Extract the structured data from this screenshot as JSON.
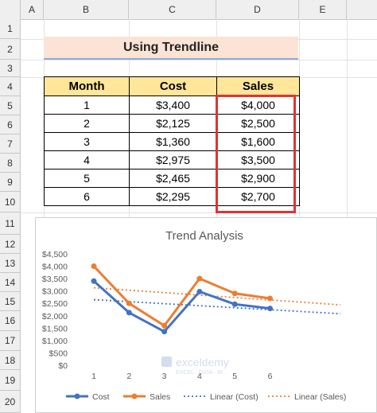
{
  "columns": [
    "A",
    "B",
    "C",
    "D",
    "E"
  ],
  "rows": [
    "1",
    "2",
    "3",
    "4",
    "5",
    "6",
    "7",
    "8",
    "9",
    "10",
    "11",
    "12",
    "13",
    "14",
    "15",
    "16",
    "17",
    "18",
    "19",
    "20"
  ],
  "sheet_title": "Using Trendline",
  "table": {
    "headers": [
      "Month",
      "Cost",
      "Sales"
    ],
    "rows": [
      [
        "1",
        "$3,400",
        "$4,000"
      ],
      [
        "2",
        "$2,125",
        "$2,500"
      ],
      [
        "3",
        "$1,360",
        "$1,600"
      ],
      [
        "4",
        "$2,975",
        "$3,500"
      ],
      [
        "5",
        "$2,465",
        "$2,900"
      ],
      [
        "6",
        "$2,295",
        "$2,700"
      ]
    ]
  },
  "colors": {
    "cost": "#4472c4",
    "sales": "#ed7d31",
    "highlight": "#e23232"
  },
  "watermark": {
    "brand": "exceldemy",
    "tagline": "EXCEL · DATA · BI"
  },
  "chart_data": {
    "type": "line",
    "title": "Trend Analysis",
    "categories": [
      1,
      2,
      3,
      4,
      5,
      6
    ],
    "y_tick_labels": [
      "$0",
      "$500",
      "$1,000",
      "$1,500",
      "$2,000",
      "$2,500",
      "$3,000",
      "$3,500",
      "$4,000",
      "$4,500"
    ],
    "ylim": [
      0,
      4500
    ],
    "series": [
      {
        "name": "Cost",
        "values": [
          3400,
          2125,
          1360,
          2975,
          2465,
          2295
        ]
      },
      {
        "name": "Sales",
        "values": [
          4000,
          2500,
          1600,
          3500,
          2900,
          2700
        ]
      }
    ],
    "trendlines": [
      {
        "name": "Linear (Cost)",
        "of": "Cost",
        "start_x": 1,
        "end_x": 8,
        "start_y": 2650,
        "end_y": 2080
      },
      {
        "name": "Linear (Sales)",
        "of": "Sales",
        "start_x": 1,
        "end_x": 8,
        "start_y": 3130,
        "end_y": 2440
      }
    ],
    "legend": [
      "Cost",
      "Sales",
      "Linear (Cost)",
      "Linear (Sales)"
    ],
    "legend_position": "bottom",
    "grid": false
  }
}
